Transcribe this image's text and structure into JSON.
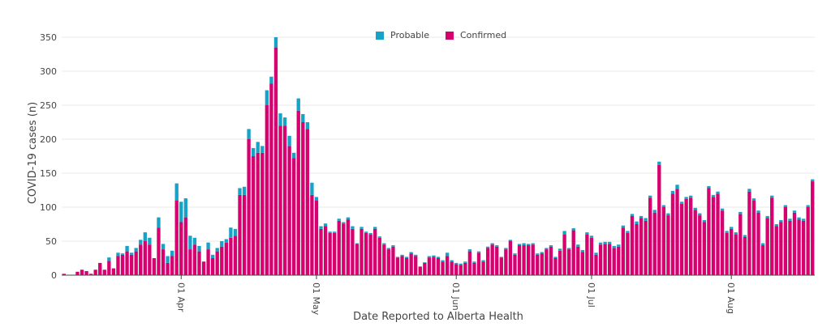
{
  "chart_data": {
    "type": "bar",
    "stacked": true,
    "title": "",
    "xlabel": "Date Reported to Alberta Health",
    "ylabel": "COVID-19 cases (n)",
    "ylim": [
      0,
      350
    ],
    "yticks": [
      0,
      50,
      100,
      150,
      200,
      250,
      300,
      350
    ],
    "x_start_day_offset_of_Apr1": -26,
    "xtick_labels": [
      {
        "label": "01 Apr",
        "day_index": 26
      },
      {
        "label": "01 May",
        "day_index": 56
      },
      {
        "label": "01 Jun",
        "day_index": 87
      },
      {
        "label": "01 Jul",
        "day_index": 117
      },
      {
        "label": "01 Aug",
        "day_index": 148
      }
    ],
    "legend": [
      {
        "name": "Probable",
        "color": "#17a2c8"
      },
      {
        "name": "Confirmed",
        "color": "#d6006e"
      }
    ],
    "series": [
      {
        "name": "Confirmed",
        "color": "#d6006e",
        "values": [
          2,
          0,
          0,
          5,
          8,
          6,
          2,
          8,
          18,
          8,
          21,
          10,
          28,
          30,
          35,
          30,
          35,
          45,
          50,
          45,
          25,
          70,
          38,
          18,
          28,
          110,
          78,
          85,
          38,
          45,
          35,
          20,
          38,
          25,
          35,
          42,
          48,
          55,
          58,
          118,
          118,
          200,
          175,
          180,
          180,
          250,
          282,
          335,
          220,
          220,
          190,
          172,
          242,
          225,
          215,
          118,
          110,
          68,
          72,
          62,
          62,
          80,
          76,
          82,
          68,
          46,
          68,
          62,
          60,
          68,
          55,
          45,
          38,
          42,
          26,
          28,
          25,
          32,
          28,
          12,
          18,
          26,
          27,
          25,
          20,
          28,
          20,
          16,
          15,
          18,
          35,
          18,
          33,
          20,
          40,
          45,
          42,
          26,
          38,
          50,
          30,
          44,
          44,
          44,
          45,
          30,
          32,
          38,
          42,
          25,
          36,
          60,
          38,
          66,
          42,
          34,
          60,
          55,
          30,
          45,
          46,
          46,
          40,
          42,
          70,
          62,
          87,
          75,
          84,
          80,
          114,
          92,
          162,
          100,
          88,
          120,
          127,
          105,
          112,
          114,
          96,
          88,
          78,
          128,
          115,
          120,
          95,
          62,
          68,
          60,
          90,
          56,
          123,
          110,
          92,
          44,
          84,
          114,
          72,
          78,
          100,
          80,
          92,
          82,
          80,
          100,
          138
        ]
      },
      {
        "name": "Probable",
        "color": "#17a2c8",
        "values": [
          0,
          0,
          0,
          0,
          0,
          0,
          0,
          0,
          0,
          0,
          5,
          0,
          5,
          2,
          8,
          3,
          5,
          7,
          13,
          10,
          0,
          15,
          8,
          10,
          8,
          25,
          30,
          28,
          20,
          10,
          8,
          0,
          10,
          5,
          5,
          8,
          5,
          15,
          10,
          10,
          12,
          15,
          12,
          16,
          10,
          22,
          10,
          15,
          18,
          12,
          15,
          8,
          18,
          12,
          10,
          18,
          5,
          4,
          4,
          2,
          2,
          3,
          2,
          3,
          4,
          1,
          3,
          2,
          2,
          3,
          2,
          2,
          2,
          2,
          1,
          2,
          2,
          2,
          2,
          1,
          1,
          2,
          2,
          2,
          2,
          5,
          2,
          2,
          2,
          2,
          3,
          2,
          2,
          2,
          2,
          2,
          2,
          1,
          2,
          2,
          2,
          2,
          3,
          2,
          2,
          2,
          2,
          2,
          2,
          2,
          3,
          5,
          2,
          3,
          3,
          3,
          3,
          3,
          3,
          3,
          3,
          3,
          3,
          3,
          3,
          3,
          3,
          4,
          3,
          4,
          3,
          4,
          5,
          3,
          3,
          4,
          6,
          3,
          3,
          3,
          3,
          3,
          3,
          3,
          3,
          3,
          3,
          3,
          3,
          3,
          3,
          3,
          4,
          3,
          3,
          3,
          3,
          3,
          3,
          3,
          3,
          3,
          3,
          3,
          3,
          3,
          3
        ]
      }
    ]
  }
}
